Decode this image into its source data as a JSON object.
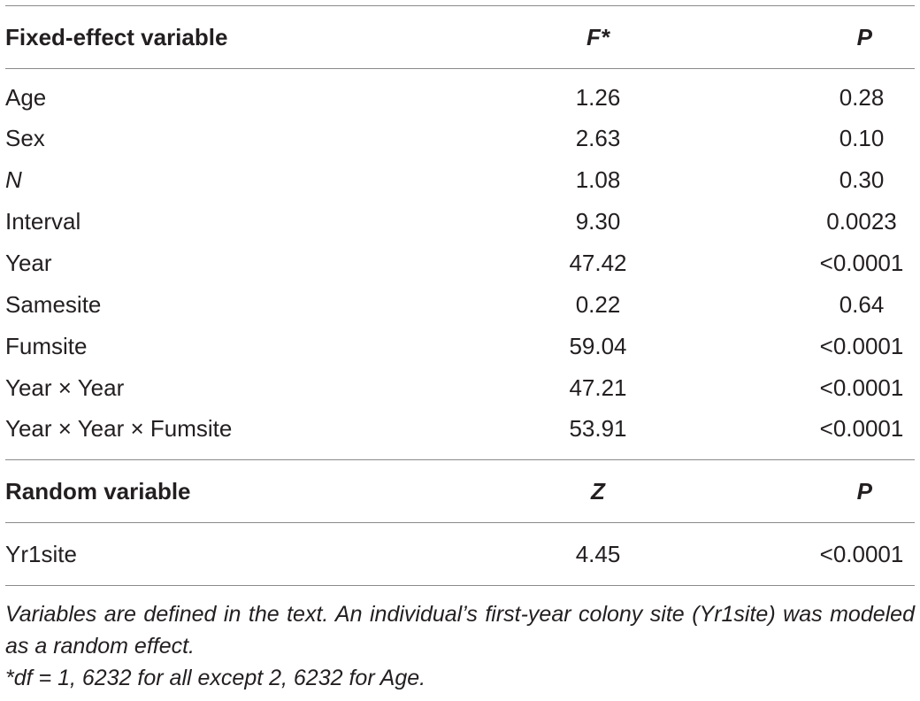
{
  "fixed_header": {
    "col1": "Fixed-effect variable",
    "col2": "F*",
    "col3": "P"
  },
  "fixed_rows": [
    {
      "variable": "Age",
      "value": "1.26",
      "p": "0.28"
    },
    {
      "variable": "Sex",
      "value": "2.63",
      "p": "0.10"
    },
    {
      "variable": "N",
      "value": "1.08",
      "p": "0.30"
    },
    {
      "variable": "Interval",
      "value": "9.30",
      "p": "0.0023"
    },
    {
      "variable": "Year",
      "value": "47.42",
      "p": "<0.0001"
    },
    {
      "variable": "Samesite",
      "value": "0.22",
      "p": "0.64"
    },
    {
      "variable": "Fumsite",
      "value": "59.04",
      "p": "<0.0001"
    },
    {
      "variable": "Year × Year",
      "value": "47.21",
      "p": "<0.0001"
    },
    {
      "variable": "Year × Year × Fumsite",
      "value": "53.91",
      "p": "<0.0001"
    }
  ],
  "random_header": {
    "col1": "Random variable",
    "col2": "Z",
    "col3": "P"
  },
  "random_rows": [
    {
      "variable": "Yr1site",
      "value": "4.45",
      "p": "<0.0001"
    }
  ],
  "footnotes": {
    "note1": "Variables are defined in the text. An individual’s first-year colony site (Yr1site) was modeled as a random effect.",
    "note2": "*df = 1, 6232 for all except 2, 6232 for Age."
  }
}
